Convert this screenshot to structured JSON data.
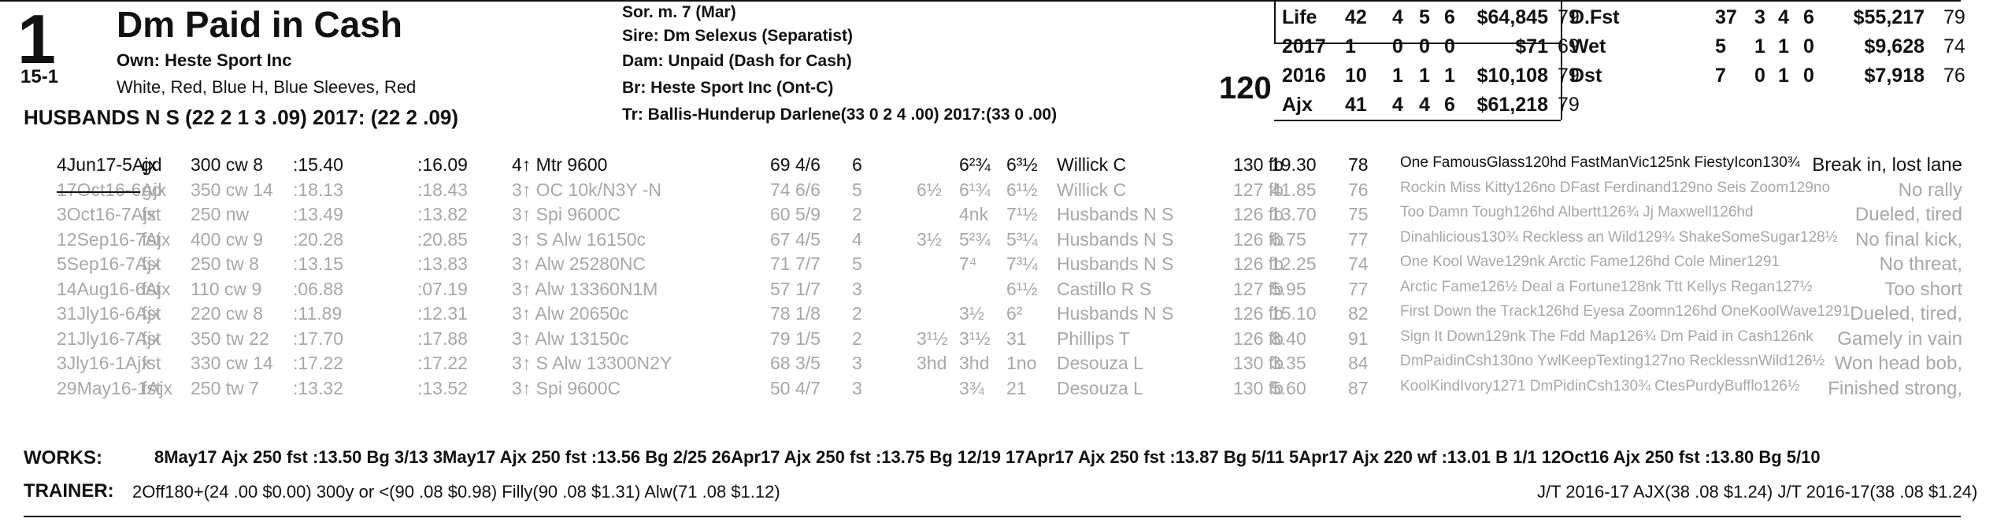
{
  "header": {
    "program_number": "1",
    "horse_name": "Dm Paid in Cash",
    "odds": "15-1",
    "owner": "Own: Heste Sport Inc",
    "silks": "White, Red, Blue H, Blue Sleeves, Red",
    "trainer_line": "HUSBANDS N S (22 2 1 3 .09) 2017: (22 2 .09)",
    "sex_age": "Sor. m. 7 (Mar)",
    "sire": "Sire: Dm Selexus (Separatist)",
    "dam": "Dam: Unpaid (Dash for Cash)",
    "breeder": "Br:   Heste Sport Inc (Ont-C)",
    "trainer_detail": "Tr:    Ballis-Hunderup Darlene(33 0 2 4 .00)  2017:(33 0 .00)",
    "weight": "120"
  },
  "stats": {
    "left": [
      {
        "label": "Life",
        "s": "42",
        "w": "4",
        "p": "5",
        "sh": "6",
        "earn": "$64,845",
        "fig": "79"
      },
      {
        "label": "2017",
        "s": "1",
        "w": "0",
        "p": "0",
        "sh": "0",
        "earn": "$71",
        "fig": "69"
      },
      {
        "label": "2016",
        "s": "10",
        "w": "1",
        "p": "1",
        "sh": "1",
        "earn": "$10,108",
        "fig": "79"
      },
      {
        "label": "Ajx",
        "s": "41",
        "w": "4",
        "p": "4",
        "sh": "6",
        "earn": "$61,218",
        "fig": "79"
      }
    ],
    "right": [
      {
        "label": "D.Fst",
        "s": "37",
        "w": "3",
        "p": "4",
        "sh": "6",
        "earn": "$55,217",
        "fig": "79"
      },
      {
        "label": "Wet",
        "s": "5",
        "w": "1",
        "p": "1",
        "sh": "0",
        "earn": "$9,628",
        "fig": "74"
      },
      {
        "label": "Dst",
        "s": "7",
        "w": "0",
        "p": "1",
        "sh": "0",
        "earn": "$7,918",
        "fig": "76"
      }
    ]
  },
  "races": [
    {
      "date": "4Jun17-5Ajx",
      "cond": "gd",
      "dist": "300 cw 8",
      "f1": ":15.40",
      "f2": ":16.09",
      "type": "4↑ Mtr 9600",
      "sp": "69",
      "pp": "4/6",
      "st": "6",
      "c1": "",
      "c2": "6²¾",
      "c3": "6³½",
      "jockey": "Willick C",
      "wt": "130 fb",
      "odds": "19.30",
      "fig": "78",
      "comment": "One FamousGlass120hd FastManVic125nk FiestyIcon130¾",
      "note": "Break in, lost lane",
      "primary": true
    },
    {
      "date": "17Oct16-6Ajx",
      "cond": "gd",
      "dist": "350 cw 14",
      "f1": ":18.13",
      "f2": ":18.43",
      "type": "3↑ OC 10k/N3Y -N",
      "sp": "74",
      "pp": "6/6",
      "st": "5",
      "c1": "6½",
      "c2": "6¹¾",
      "c3": "6¹½",
      "jockey": "Willick C",
      "wt": "127 fb",
      "odds": "41.85",
      "fig": "76",
      "comment": "Rockin Miss Kitty126no DFast Ferdinand129no Seis Zoom129no",
      "note": "No rally",
      "primary": false
    },
    {
      "date": "3Oct16-7Ajx",
      "cond": "fst",
      "dist": "250 nw",
      "f1": ":13.49",
      "f2": ":13.82",
      "type": "3↑ Spi 9600C",
      "sp": "60",
      "pp": "5/9",
      "st": "2",
      "c1": "",
      "c2": "4nk",
      "c3": "7¹½",
      "jockey": "Husbands N S",
      "wt": "126 fb",
      "odds": "13.70",
      "fig": "75",
      "comment": "Too Damn Tough126hd Albertt126¾ Jj Maxwell126hd",
      "note": "Dueled, tired",
      "primary": false
    },
    {
      "date": "12Sep16-7Ajx",
      "cond": "fst",
      "dist": "400 cw 9",
      "f1": ":20.28",
      "f2": ":20.85",
      "type": "3↑ S Alw 16150c",
      "sp": "67",
      "pp": "4/5",
      "st": "4",
      "c1": "3½",
      "c2": "5²¾",
      "c3": "5³¼",
      "jockey": "Husbands N S",
      "wt": "126 fb",
      "odds": "6.75",
      "fig": "77",
      "comment": "Dinahlicious130¾ Reckless an Wild129¾ ShakeSomeSugar128½",
      "note": "No final kick,",
      "primary": false
    },
    {
      "date": "5Sep16-7Ajx",
      "cond": "fst",
      "dist": "250 tw 8",
      "f1": ":13.15",
      "f2": ":13.83",
      "type": "3↑ Alw 25280NC",
      "sp": "71",
      "pp": "7/7",
      "st": "5",
      "c1": "",
      "c2": "7⁴",
      "c3": "7³¼",
      "jockey": "Husbands N S",
      "wt": "126 fb",
      "odds": "12.25",
      "fig": "74",
      "comment": "One Kool Wave129nk Arctic Fame126hd Cole Miner1291",
      "note": "No threat,",
      "primary": false
    },
    {
      "date": "14Aug16-6Ajx",
      "cond": "fst",
      "dist": "110 cw 9",
      "f1": ":06.88",
      "f2": ":07.19",
      "type": "3↑ Alw 13360N1M",
      "sp": "57",
      "pp": "1/7",
      "st": "3",
      "c1": "",
      "c2": "",
      "c3": "6¹½",
      "jockey": "Castillo R S",
      "wt": "127 fb",
      "odds": "5.95",
      "fig": "77",
      "comment": "Arctic Fame126½ Deal a Fortune128nk Ttt Kellys Regan127½",
      "note": "Too short",
      "primary": false
    },
    {
      "date": "31Jly16-6Ajx",
      "cond": "fst",
      "dist": "220 cw 8",
      "f1": ":11.89",
      "f2": ":12.31",
      "type": "3↑ Alw 20650c",
      "sp": "78",
      "pp": "1/8",
      "st": "2",
      "c1": "",
      "c2": "3½",
      "c3": "6²",
      "jockey": "Husbands N S",
      "wt": "126 fb",
      "odds": "15.10",
      "fig": "82",
      "comment": "First Down the Track126hd Eyesa Zoomn126hd OneKoolWave1291",
      "note": "Dueled, tired,",
      "primary": false
    },
    {
      "date": "21Jly16-7Ajx",
      "cond": "fst",
      "dist": "350 tw 22",
      "f1": ":17.70",
      "f2": ":17.88",
      "type": "3↑ Alw 13150c",
      "sp": "79",
      "pp": "1/5",
      "st": "2",
      "c1": "3¹½",
      "c2": "3¹½",
      "c3": "31",
      "jockey": "Phillips T",
      "wt": "126 fb",
      "odds": "8.40",
      "fig": "91",
      "comment": "Sign It Down129nk The Fdd Map126¾ Dm Paid in Cash126nk",
      "note": "Gamely in vain",
      "primary": false
    },
    {
      "date": "3Jly16-1Ajx",
      "cond": "fst",
      "dist": "330 cw 14",
      "f1": ":17.22",
      "f2": ":17.22",
      "type": "3↑ S Alw 13300N2Y",
      "sp": "68",
      "pp": "3/5",
      "st": "3",
      "c1": "3hd",
      "c2": "3hd",
      "c3": "1no",
      "jockey": "Desouza L",
      "wt": "130 fb",
      "odds": "3.35",
      "fig": "84",
      "comment": "DmPaidinCsh130no YwlKeepTexting127no RecklessnWild126½",
      "note": "Won head bob,",
      "primary": false
    },
    {
      "date": "29May16-1Ajx",
      "cond": "fst",
      "dist": "250 tw 7",
      "f1": ":13.32",
      "f2": ":13.52",
      "type": "3↑ Spi 9600C",
      "sp": "50",
      "pp": "4/7",
      "st": "3",
      "c1": "",
      "c2": "3¾",
      "c3": "21",
      "jockey": "Desouza L",
      "wt": "130 fb",
      "odds": "5.60",
      "fig": "87",
      "comment": "KoolKindIvory1271 DmPidinCsh130¾ CtesPurdyBufflo126½",
      "note": "Finished strong,",
      "primary": false
    }
  ],
  "works": {
    "label": "WORKS:",
    "text": "8May17 Ajx 250 fst :13.50 Bg 3/13   3May17 Ajx 250 fst :13.56 Bg 2/25   26Apr17 Ajx 250 fst :13.75 Bg 12/19   17Apr17 Ajx 250 fst :13.87 Bg 5/11   5Apr17 Ajx 220 wf :13.01 B 1/1   12Oct16 Ajx 250 fst :13.80 Bg 5/10"
  },
  "trainer_stats": {
    "label": "TRAINER:",
    "text": "2Off180+(24 .00 $0.00) 300y or <(90 .08 $0.98) Filly(90 .08 $1.31) Alw(71 .08 $1.12)",
    "jt": "J/T 2016-17 AJX(38 .08 $1.24)  J/T 2016-17(38 .08 $1.24)"
  }
}
